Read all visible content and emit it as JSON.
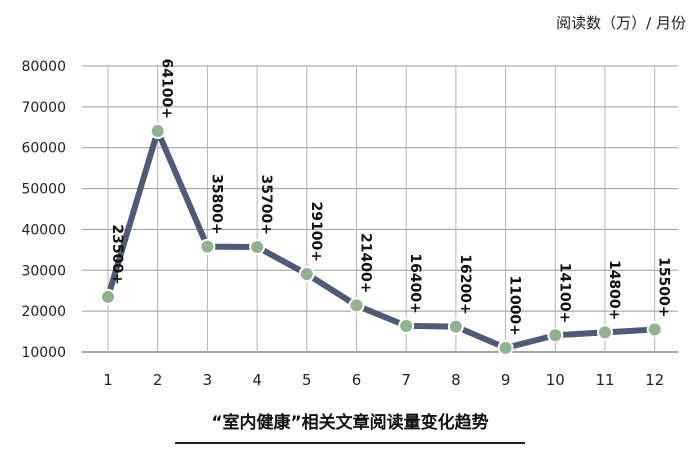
{
  "unit_label": "阅读数（万）/ 月份",
  "chart_data": {
    "type": "line",
    "title": "“室内健康”相关文章阅读量变化趋势",
    "xlabel": "",
    "ylabel": "",
    "x": [
      1,
      2,
      3,
      4,
      5,
      6,
      7,
      8,
      9,
      10,
      11,
      12
    ],
    "series": [
      {
        "values": [
          23500,
          64100,
          35800,
          35700,
          29100,
          21400,
          16400,
          16200,
          11000,
          14100,
          14800,
          15500
        ],
        "labels": [
          "23500+",
          "64100+",
          "35800+",
          "35700+",
          "29100+",
          "21400+",
          "16400+",
          "16200+",
          "11000+",
          "14100+",
          "14800+",
          "15500+"
        ]
      }
    ],
    "ylim": [
      10000,
      80000
    ],
    "yticks": [
      10000,
      20000,
      30000,
      40000,
      50000,
      60000,
      70000,
      80000
    ],
    "grid": true,
    "line_color": "#4f5a78",
    "marker_color": "#8fb38f"
  }
}
